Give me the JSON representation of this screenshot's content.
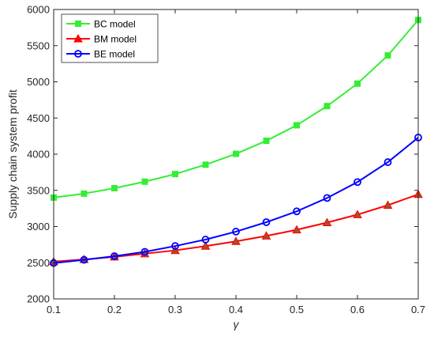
{
  "chart_data": {
    "type": "line",
    "title": "",
    "xlabel": "γ",
    "ylabel": "Supply chain system profit",
    "xlim": [
      0.1,
      0.7
    ],
    "ylim": [
      2000,
      6000
    ],
    "xticks": [
      0.1,
      0.2,
      0.3,
      0.4,
      0.5,
      0.6,
      0.7
    ],
    "xtick_labels": [
      "0.1",
      "0.2",
      "0.3",
      "0.4",
      "0.5",
      "0.6",
      "0.7"
    ],
    "yticks": [
      2000,
      2500,
      3000,
      3500,
      4000,
      4500,
      5000,
      5500,
      6000
    ],
    "ytick_labels": [
      "2000",
      "2500",
      "3000",
      "3500",
      "4000",
      "4500",
      "5000",
      "5500",
      "6000"
    ],
    "grid": false,
    "legend_position": "top-left",
    "x": [
      0.1,
      0.15,
      0.2,
      0.25,
      0.3,
      0.35,
      0.4,
      0.45,
      0.5,
      0.55,
      0.6,
      0.65,
      0.7
    ],
    "series": [
      {
        "name": "BC model",
        "marker": "square",
        "color": "#33ee33",
        "values": [
          3400,
          3455,
          3530,
          3620,
          3725,
          3855,
          4005,
          4185,
          4400,
          4665,
          4975,
          5365,
          5855
        ]
      },
      {
        "name": "BM model",
        "marker": "triangle",
        "color": "#ff0000",
        "marker_fill": "#a0522d",
        "values": [
          2515,
          2545,
          2580,
          2625,
          2670,
          2730,
          2795,
          2870,
          2955,
          3055,
          3165,
          3295,
          3445
        ]
      },
      {
        "name": "BE model",
        "marker": "circle",
        "color": "#0000ff",
        "values": [
          2495,
          2540,
          2590,
          2650,
          2730,
          2820,
          2930,
          3060,
          3210,
          3395,
          3615,
          3890,
          4230
        ]
      }
    ]
  }
}
